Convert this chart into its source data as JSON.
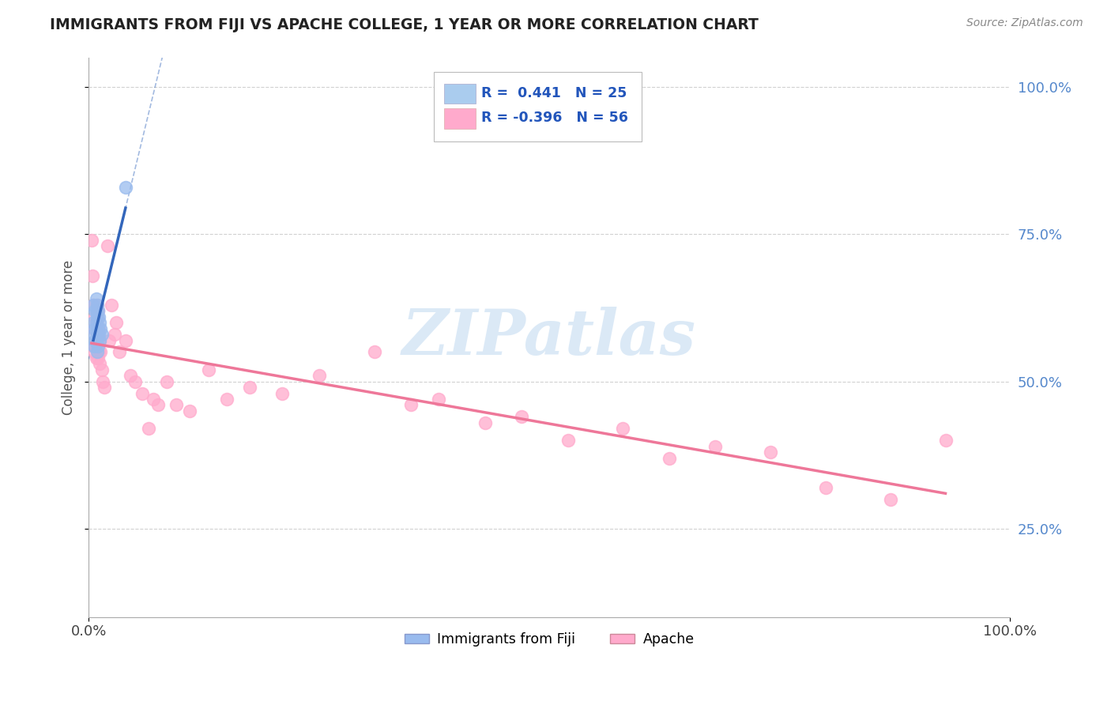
{
  "title": "IMMIGRANTS FROM FIJI VS APACHE COLLEGE, 1 YEAR OR MORE CORRELATION CHART",
  "source_text": "Source: ZipAtlas.com",
  "ylabel": "College, 1 year or more",
  "xlim": [
    0,
    1.0
  ],
  "ylim": [
    0.1,
    1.05
  ],
  "yticks": [
    0.25,
    0.5,
    0.75,
    1.0
  ],
  "ytick_labels_right": [
    "25.0%",
    "50.0%",
    "75.0%",
    "100.0%"
  ],
  "grid_color": "#cccccc",
  "background_color": "#ffffff",
  "watermark_text": "ZIPatlas",
  "blue_color": "#99bbee",
  "pink_color": "#ffaacc",
  "blue_line_color": "#3366bb",
  "pink_line_color": "#ee7799",
  "fiji_x": [
    0.005,
    0.005,
    0.006,
    0.006,
    0.007,
    0.007,
    0.007,
    0.008,
    0.008,
    0.008,
    0.008,
    0.009,
    0.009,
    0.009,
    0.009,
    0.01,
    0.01,
    0.01,
    0.011,
    0.011,
    0.012,
    0.012,
    0.013,
    0.014,
    0.04
  ],
  "fiji_y": [
    0.63,
    0.6,
    0.58,
    0.56,
    0.62,
    0.59,
    0.57,
    0.64,
    0.62,
    0.6,
    0.57,
    0.63,
    0.61,
    0.58,
    0.55,
    0.62,
    0.59,
    0.56,
    0.61,
    0.58,
    0.6,
    0.57,
    0.59,
    0.58,
    0.83
  ],
  "apache_x": [
    0.003,
    0.004,
    0.005,
    0.006,
    0.006,
    0.007,
    0.007,
    0.008,
    0.008,
    0.009,
    0.009,
    0.01,
    0.01,
    0.01,
    0.011,
    0.011,
    0.012,
    0.012,
    0.013,
    0.014,
    0.015,
    0.017,
    0.02,
    0.022,
    0.025,
    0.028,
    0.03,
    0.033,
    0.04,
    0.045,
    0.05,
    0.058,
    0.065,
    0.07,
    0.075,
    0.085,
    0.095,
    0.11,
    0.13,
    0.15,
    0.175,
    0.21,
    0.25,
    0.31,
    0.35,
    0.38,
    0.43,
    0.47,
    0.52,
    0.58,
    0.63,
    0.68,
    0.74,
    0.8,
    0.87,
    0.93
  ],
  "apache_y": [
    0.74,
    0.68,
    0.63,
    0.59,
    0.55,
    0.61,
    0.56,
    0.6,
    0.54,
    0.63,
    0.58,
    0.62,
    0.58,
    0.54,
    0.59,
    0.55,
    0.57,
    0.53,
    0.55,
    0.52,
    0.5,
    0.49,
    0.73,
    0.57,
    0.63,
    0.58,
    0.6,
    0.55,
    0.57,
    0.51,
    0.5,
    0.48,
    0.42,
    0.47,
    0.46,
    0.5,
    0.46,
    0.45,
    0.52,
    0.47,
    0.49,
    0.48,
    0.51,
    0.55,
    0.46,
    0.47,
    0.43,
    0.44,
    0.4,
    0.42,
    0.37,
    0.39,
    0.38,
    0.32,
    0.3,
    0.4
  ]
}
